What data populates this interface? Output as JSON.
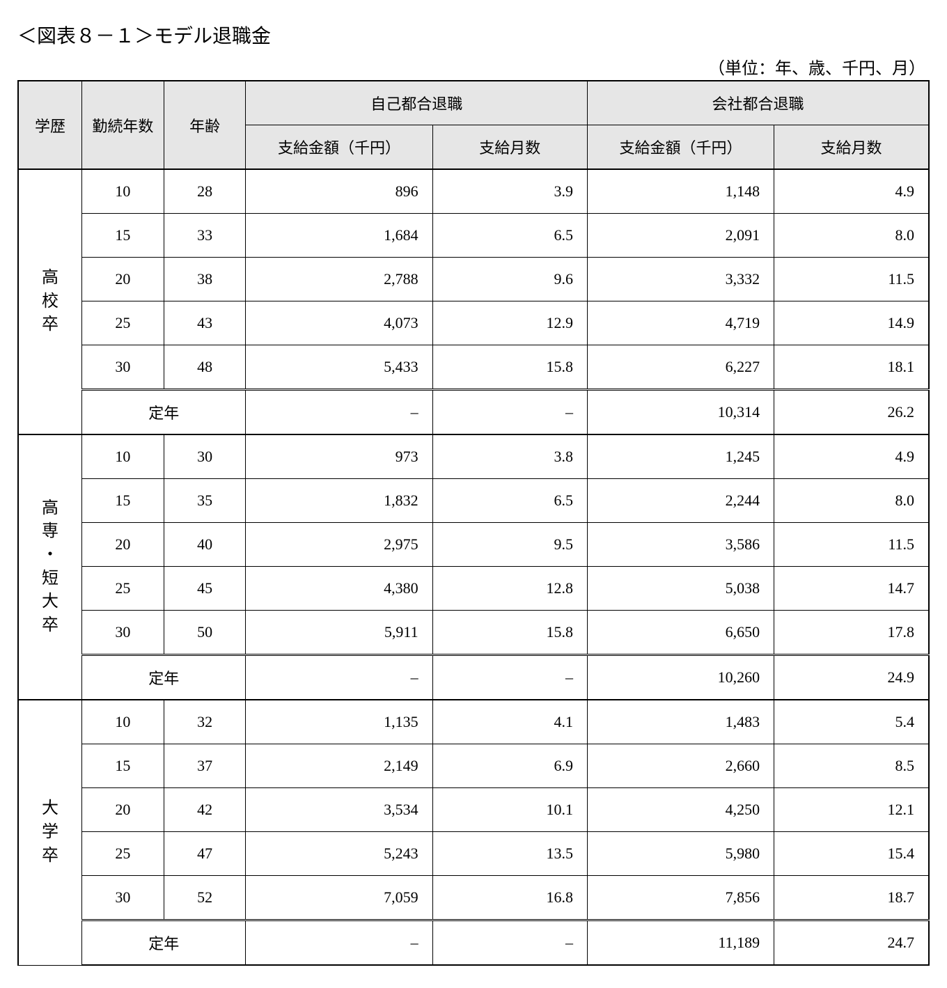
{
  "title": "＜図表８－１＞モデル退職金",
  "unit_note": "（単位：年、歳、千円、月）",
  "headers": {
    "edu": "学歴",
    "years": "勤続年数",
    "age": "年齢",
    "self_group": "自己都合退職",
    "company_group": "会社都合退職",
    "amount": "支給金額（千円）",
    "months": "支給月数"
  },
  "teinen_label": "定年",
  "dash": "–",
  "groups": [
    {
      "label_chars": [
        "高",
        "校",
        "卒"
      ],
      "rows": [
        {
          "years": "10",
          "age": "28",
          "self_amount": "896",
          "self_months": "3.9",
          "co_amount": "1,148",
          "co_months": "4.9"
        },
        {
          "years": "15",
          "age": "33",
          "self_amount": "1,684",
          "self_months": "6.5",
          "co_amount": "2,091",
          "co_months": "8.0"
        },
        {
          "years": "20",
          "age": "38",
          "self_amount": "2,788",
          "self_months": "9.6",
          "co_amount": "3,332",
          "co_months": "11.5"
        },
        {
          "years": "25",
          "age": "43",
          "self_amount": "4,073",
          "self_months": "12.9",
          "co_amount": "4,719",
          "co_months": "14.9"
        },
        {
          "years": "30",
          "age": "48",
          "self_amount": "5,433",
          "self_months": "15.8",
          "co_amount": "6,227",
          "co_months": "18.1"
        }
      ],
      "teinen": {
        "co_amount": "10,314",
        "co_months": "26.2"
      }
    },
    {
      "label_chars": [
        "高",
        "専",
        "・",
        "短",
        "大",
        "卒"
      ],
      "rows": [
        {
          "years": "10",
          "age": "30",
          "self_amount": "973",
          "self_months": "3.8",
          "co_amount": "1,245",
          "co_months": "4.9"
        },
        {
          "years": "15",
          "age": "35",
          "self_amount": "1,832",
          "self_months": "6.5",
          "co_amount": "2,244",
          "co_months": "8.0"
        },
        {
          "years": "20",
          "age": "40",
          "self_amount": "2,975",
          "self_months": "9.5",
          "co_amount": "3,586",
          "co_months": "11.5"
        },
        {
          "years": "25",
          "age": "45",
          "self_amount": "4,380",
          "self_months": "12.8",
          "co_amount": "5,038",
          "co_months": "14.7"
        },
        {
          "years": "30",
          "age": "50",
          "self_amount": "5,911",
          "self_months": "15.8",
          "co_amount": "6,650",
          "co_months": "17.8"
        }
      ],
      "teinen": {
        "co_amount": "10,260",
        "co_months": "24.9"
      }
    },
    {
      "label_chars": [
        "大",
        "学",
        "卒"
      ],
      "rows": [
        {
          "years": "10",
          "age": "32",
          "self_amount": "1,135",
          "self_months": "4.1",
          "co_amount": "1,483",
          "co_months": "5.4"
        },
        {
          "years": "15",
          "age": "37",
          "self_amount": "2,149",
          "self_months": "6.9",
          "co_amount": "2,660",
          "co_months": "8.5"
        },
        {
          "years": "20",
          "age": "42",
          "self_amount": "3,534",
          "self_months": "10.1",
          "co_amount": "4,250",
          "co_months": "12.1"
        },
        {
          "years": "25",
          "age": "47",
          "self_amount": "5,243",
          "self_months": "13.5",
          "co_amount": "5,980",
          "co_months": "15.4"
        },
        {
          "years": "30",
          "age": "52",
          "self_amount": "7,059",
          "self_months": "16.8",
          "co_amount": "7,856",
          "co_months": "18.7"
        }
      ],
      "teinen": {
        "co_amount": "11,189",
        "co_months": "24.7"
      }
    }
  ]
}
